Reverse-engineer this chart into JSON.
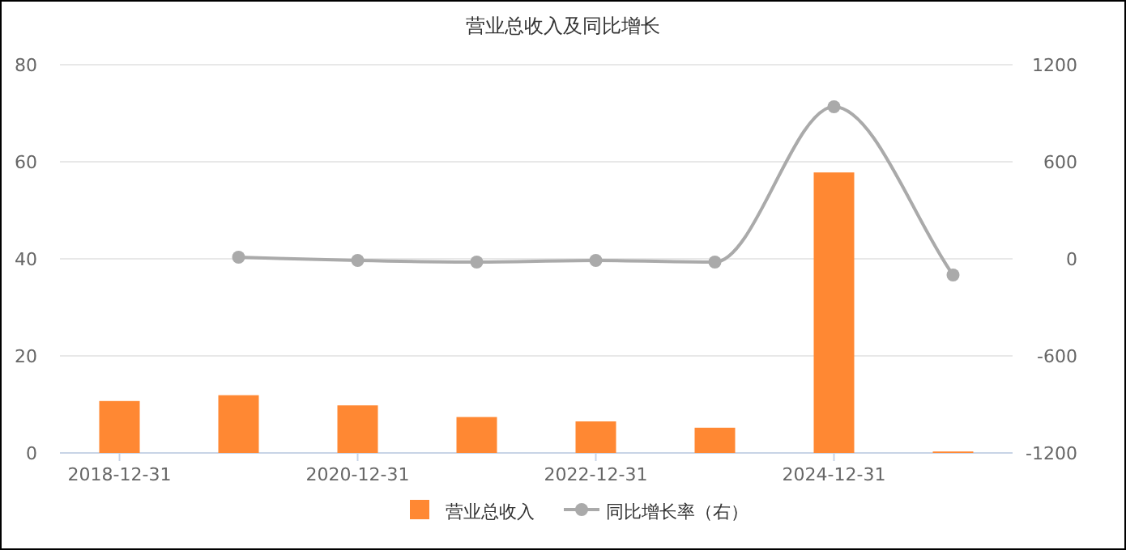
{
  "chart_data": {
    "type": "bar",
    "title": "营业总收入及同比增长",
    "categories": [
      "2018-12-31",
      null,
      "2020-12-31",
      null,
      "2022-12-31",
      null,
      "2024-12-31",
      null
    ],
    "series": [
      {
        "name": "营业总收入",
        "color": "#ff8833",
        "values": [
          10.7,
          11.9,
          9.8,
          7.4,
          6.5,
          5.2,
          57.8,
          0.3
        ]
      },
      {
        "name": "同比增长率（右）",
        "type": "line",
        "axis": "y2",
        "color": "#aaaaaa",
        "marker": "circle",
        "values": [
          null,
          10,
          -10,
          -20,
          -10,
          -20,
          940,
          -100
        ]
      }
    ],
    "ylim": [
      0,
      80
    ],
    "yticks": [
      0,
      20,
      40,
      60,
      80
    ],
    "y2lim": [
      -1200,
      1200
    ],
    "y2ticks": [
      -1200,
      -600,
      0,
      600,
      1200
    ],
    "grid": "y",
    "legend": "bottom"
  }
}
